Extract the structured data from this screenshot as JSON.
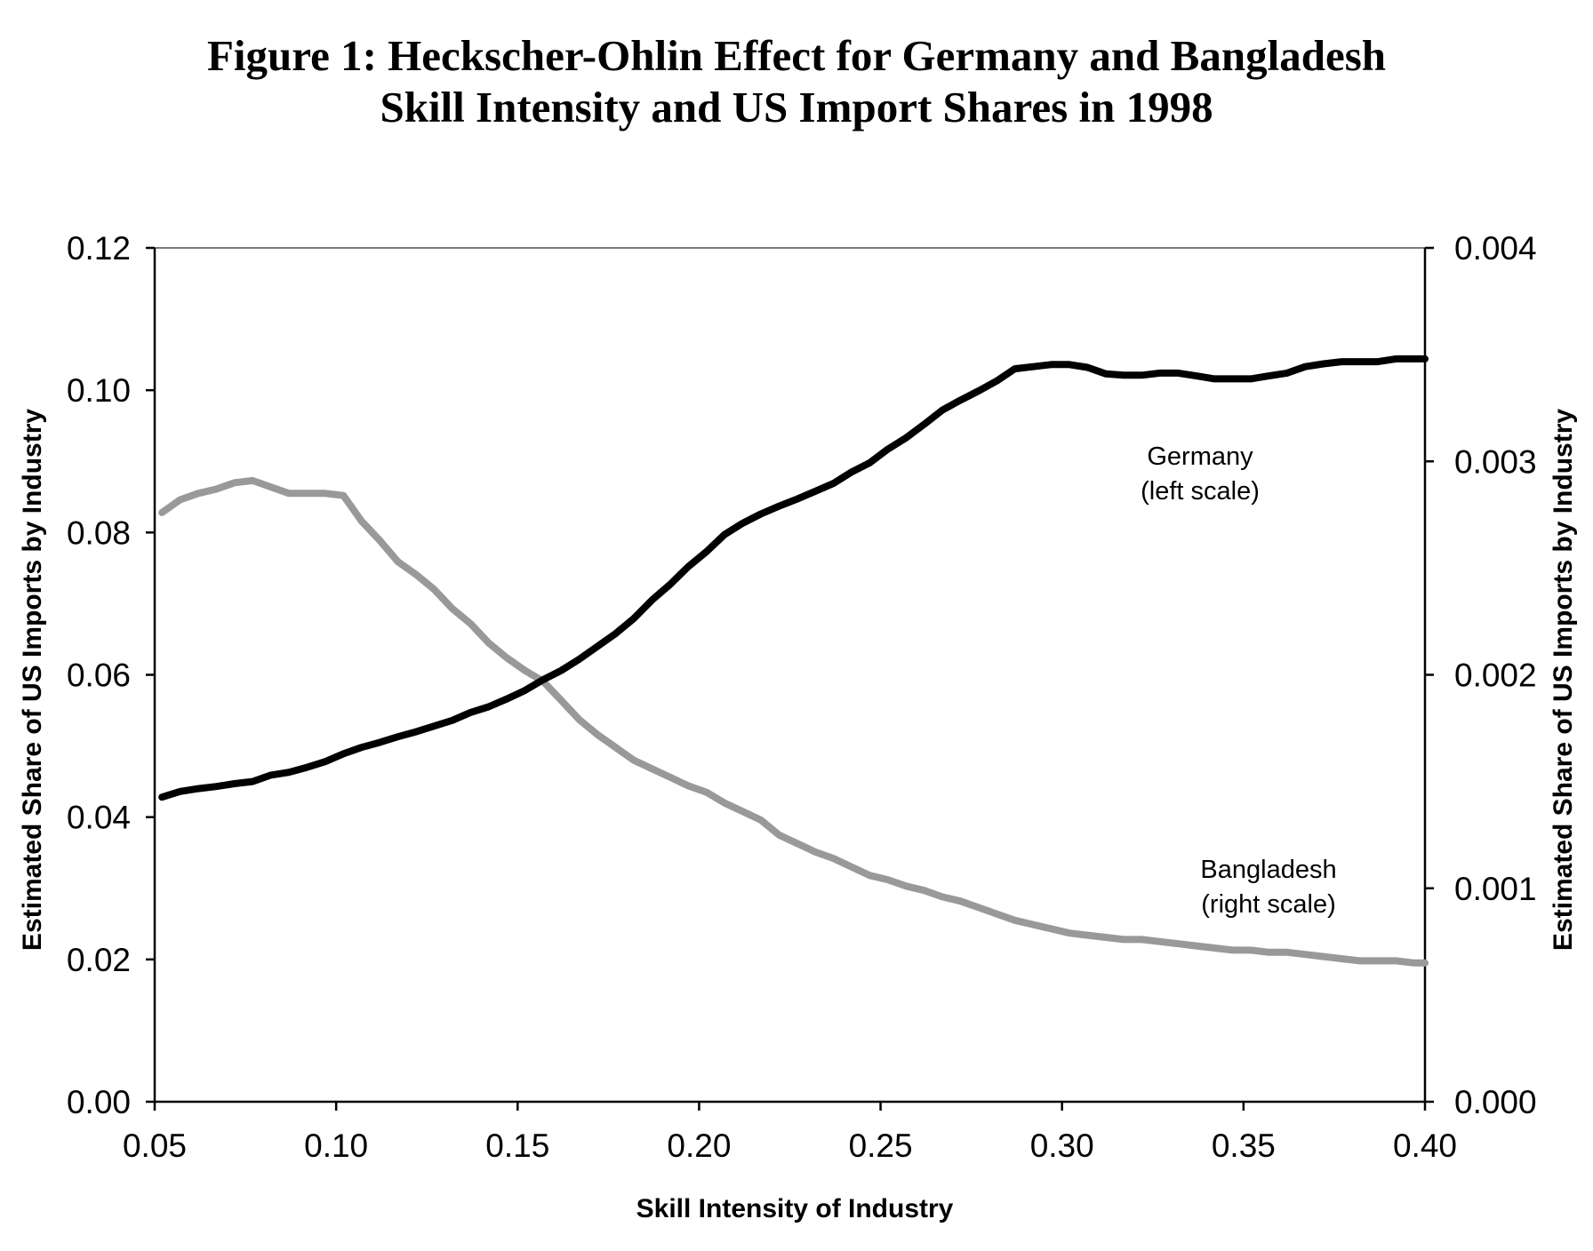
{
  "chart_data": {
    "type": "line",
    "title": "Figure 1: Heckscher-Ohlin Effect for Germany and Bangladesh",
    "subtitle": "Skill Intensity and US Import Shares in 1998",
    "xlabel": "Skill Intensity of Industry",
    "ylabel_left": "Estimated Share of US Imports by Industry",
    "ylabel_right": "Estimated Share of US Imports by Industry",
    "xlim": [
      0.05,
      0.4
    ],
    "ylim_left": [
      0,
      0.12
    ],
    "ylim_right": [
      0,
      0.004
    ],
    "x_ticks": [
      "0.05",
      "0.10",
      "0.15",
      "0.20",
      "0.25",
      "0.30",
      "0.35",
      "0.40"
    ],
    "y_ticks_left": [
      "0.00",
      "0.02",
      "0.04",
      "0.06",
      "0.08",
      "0.10",
      "0.12"
    ],
    "y_ticks_right": [
      "0.000",
      "0.001",
      "0.002",
      "0.003",
      "0.004"
    ],
    "grid": false,
    "legend": "none",
    "annotations": [
      {
        "series": "Germany",
        "lines": [
          "Germany",
          "(left scale)"
        ]
      },
      {
        "series": "Bangladesh",
        "lines": [
          "Bangladesh",
          "(right scale)"
        ]
      }
    ],
    "series": [
      {
        "name": "Germany",
        "axis": "left",
        "color": "#000000",
        "x": [
          0.052,
          0.057,
          0.062,
          0.067,
          0.072,
          0.077,
          0.082,
          0.087,
          0.092,
          0.097,
          0.102,
          0.107,
          0.112,
          0.117,
          0.122,
          0.127,
          0.132,
          0.137,
          0.142,
          0.147,
          0.152,
          0.157,
          0.162,
          0.167,
          0.172,
          0.177,
          0.182,
          0.187,
          0.192,
          0.197,
          0.202,
          0.207,
          0.212,
          0.217,
          0.222,
          0.227,
          0.232,
          0.237,
          0.242,
          0.247,
          0.252,
          0.257,
          0.262,
          0.267,
          0.272,
          0.277,
          0.282,
          0.287,
          0.292,
          0.297,
          0.302,
          0.307,
          0.312,
          0.317,
          0.322,
          0.327,
          0.332,
          0.337,
          0.342,
          0.347,
          0.352,
          0.357,
          0.362,
          0.367,
          0.372,
          0.377,
          0.382,
          0.387,
          0.392,
          0.397,
          0.4
        ],
        "values": [
          0.0428,
          0.0436,
          0.044,
          0.0443,
          0.0447,
          0.045,
          0.0459,
          0.0463,
          0.047,
          0.0478,
          0.0489,
          0.0498,
          0.0505,
          0.0513,
          0.052,
          0.0528,
          0.0536,
          0.0547,
          0.0555,
          0.0566,
          0.0578,
          0.0593,
          0.0606,
          0.0622,
          0.064,
          0.0658,
          0.0679,
          0.0705,
          0.0727,
          0.0752,
          0.0773,
          0.0797,
          0.0813,
          0.0826,
          0.0837,
          0.0847,
          0.0858,
          0.0869,
          0.0885,
          0.0898,
          0.0917,
          0.0933,
          0.0952,
          0.0972,
          0.0986,
          0.0999,
          0.1013,
          0.103,
          0.1033,
          0.1036,
          0.1036,
          0.1032,
          0.1023,
          0.1021,
          0.1021,
          0.1024,
          0.1024,
          0.102,
          0.1016,
          0.1016,
          0.1016,
          0.102,
          0.1024,
          0.1033,
          0.1037,
          0.104,
          0.104,
          0.104,
          0.1044,
          0.1044,
          0.1044
        ]
      },
      {
        "name": "Bangladesh",
        "axis": "right",
        "color": "#999999",
        "x": [
          0.052,
          0.057,
          0.062,
          0.067,
          0.072,
          0.077,
          0.082,
          0.087,
          0.092,
          0.097,
          0.102,
          0.107,
          0.112,
          0.117,
          0.122,
          0.127,
          0.132,
          0.137,
          0.142,
          0.147,
          0.152,
          0.157,
          0.162,
          0.167,
          0.172,
          0.177,
          0.182,
          0.187,
          0.192,
          0.197,
          0.202,
          0.207,
          0.212,
          0.217,
          0.222,
          0.227,
          0.232,
          0.237,
          0.242,
          0.247,
          0.252,
          0.257,
          0.262,
          0.267,
          0.272,
          0.277,
          0.282,
          0.287,
          0.292,
          0.297,
          0.302,
          0.307,
          0.312,
          0.317,
          0.322,
          0.327,
          0.332,
          0.337,
          0.342,
          0.347,
          0.352,
          0.357,
          0.362,
          0.367,
          0.372,
          0.377,
          0.382,
          0.387,
          0.392,
          0.397,
          0.4
        ],
        "values": [
          0.00276,
          0.00282,
          0.00285,
          0.00287,
          0.0029,
          0.00291,
          0.00288,
          0.00285,
          0.00285,
          0.00285,
          0.00284,
          0.00272,
          0.00263,
          0.00253,
          0.00247,
          0.0024,
          0.00231,
          0.00224,
          0.00215,
          0.00208,
          0.00202,
          0.00197,
          0.00188,
          0.00179,
          0.00172,
          0.00166,
          0.0016,
          0.00156,
          0.00152,
          0.00148,
          0.00145,
          0.0014,
          0.00136,
          0.00132,
          0.00125,
          0.00121,
          0.00117,
          0.00114,
          0.0011,
          0.00106,
          0.00104,
          0.00101,
          0.00099,
          0.00096,
          0.00094,
          0.00091,
          0.00088,
          0.00085,
          0.00083,
          0.00081,
          0.00079,
          0.00078,
          0.00077,
          0.00076,
          0.00076,
          0.00075,
          0.00074,
          0.00073,
          0.00072,
          0.00071,
          0.00071,
          0.0007,
          0.0007,
          0.00069,
          0.00068,
          0.00067,
          0.00066,
          0.00066,
          0.00066,
          0.00065,
          0.00065
        ]
      }
    ]
  }
}
